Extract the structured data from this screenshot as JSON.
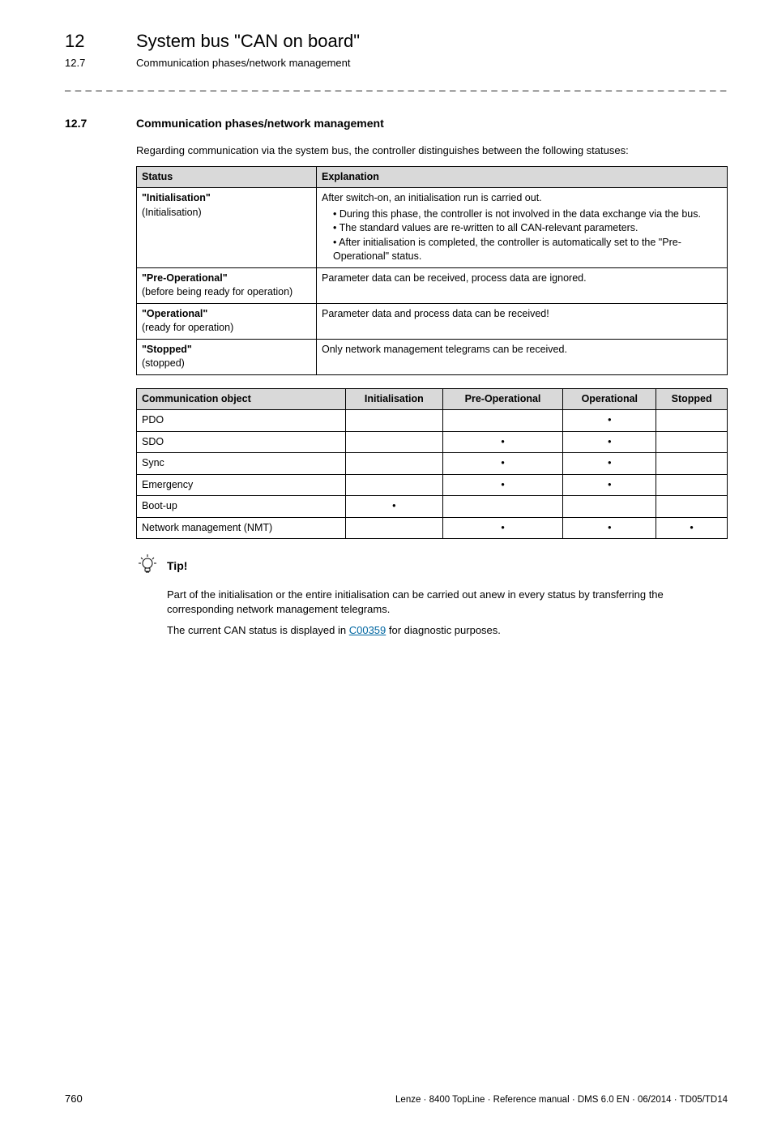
{
  "header": {
    "chapter_number": "12",
    "chapter_title": "System bus \"CAN on board\"",
    "section_number": "12.7",
    "section_title_plain": "Communication phases/network management"
  },
  "section": {
    "number": "12.7",
    "title": "Communication phases/network management",
    "intro": "Regarding communication via the system bus, the controller distinguishes between the following statuses:"
  },
  "status_table": {
    "headers": {
      "status": "Status",
      "explanation": "Explanation"
    },
    "rows": [
      {
        "status_bold": "\"Initialisation\"",
        "status_plain": "(Initialisation)",
        "explanation_lead": "After switch-on, an initialisation run is carried out.",
        "bullets": [
          "During this phase, the controller is not involved in the data exchange via the bus.",
          "The standard values are re-written to all CAN-relevant parameters.",
          "After initialisation is completed, the controller is automatically set to the \"Pre-Operational\" status."
        ]
      },
      {
        "status_bold": "\"Pre-Operational\"",
        "status_plain": "(before being ready for operation)",
        "explanation_lead": "Parameter data can be received, process data are ignored.",
        "bullets": []
      },
      {
        "status_bold": "\"Operational\"",
        "status_plain": "(ready for operation)",
        "explanation_lead": "Parameter data and process data can be received!",
        "bullets": []
      },
      {
        "status_bold": "\"Stopped\"",
        "status_plain": "(stopped)",
        "explanation_lead": "Only network management telegrams can be received.",
        "bullets": []
      }
    ]
  },
  "comm_table": {
    "headers": {
      "object": "Communication object",
      "init": "Initialisation",
      "preop": "Pre-Operational",
      "op": "Operational",
      "stopped": "Stopped"
    },
    "dot": "•",
    "rows": [
      {
        "name": "PDO",
        "init": false,
        "preop": false,
        "op": true,
        "stopped": false
      },
      {
        "name": "SDO",
        "init": false,
        "preop": true,
        "op": true,
        "stopped": false
      },
      {
        "name": "Sync",
        "init": false,
        "preop": true,
        "op": true,
        "stopped": false
      },
      {
        "name": "Emergency",
        "init": false,
        "preop": true,
        "op": true,
        "stopped": false
      },
      {
        "name": "Boot-up",
        "init": true,
        "preop": false,
        "op": false,
        "stopped": false
      },
      {
        "name": "Network management (NMT)",
        "init": false,
        "preop": true,
        "op": true,
        "stopped": true
      }
    ]
  },
  "tip": {
    "label": "Tip!",
    "p1": "Part of the initialisation or the entire initialisation can be carried out anew in every status by transferring the corresponding network management telegrams.",
    "p2_pre": "The current CAN status is displayed in ",
    "p2_link": "C00359",
    "p2_post": " for diagnostic purposes."
  },
  "footer": {
    "page": "760",
    "meta": "Lenze · 8400 TopLine · Reference manual · DMS 6.0 EN · 06/2014 · TD05/TD14"
  },
  "colors": {
    "header_bg": "#d9d9d9",
    "link": "#0066a1"
  }
}
